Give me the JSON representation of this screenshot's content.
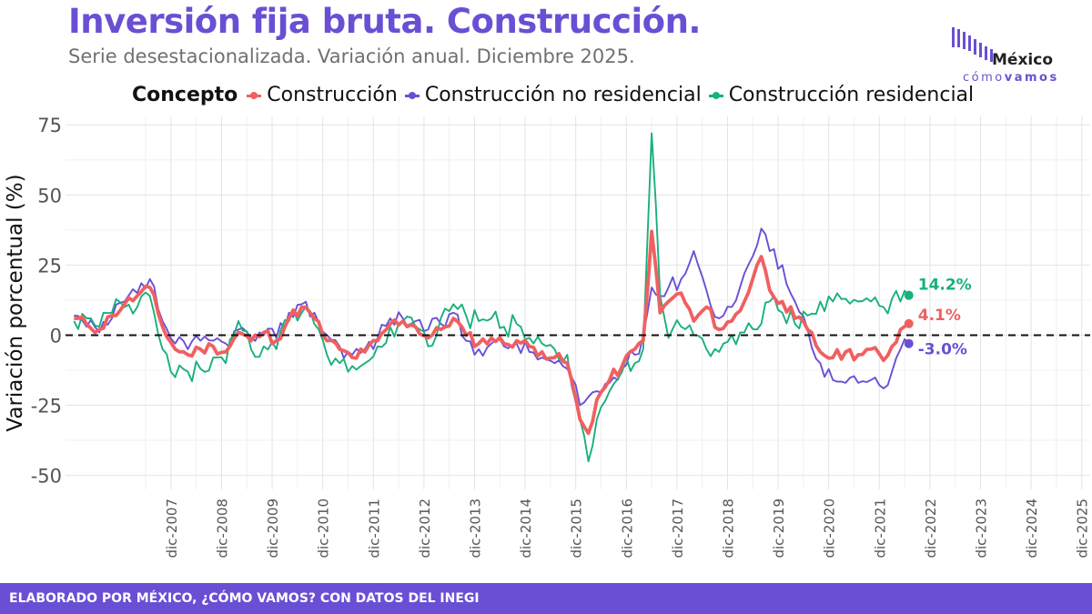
{
  "header": {
    "title": "Inversión fija bruta. Construcción.",
    "subtitle": "Serie desestacionalizada. Variación anual. Diciembre 2025."
  },
  "logo": {
    "name": "México",
    "sub_light": "cómo",
    "sub_bold": "vamos"
  },
  "footer": {
    "text": "ELABORADO POR MÉXICO, ¿CÓMO VAMOS? CON DATOS DEL INEGI"
  },
  "legend": {
    "title": "Concepto"
  },
  "chart_data": {
    "type": "line",
    "title": "Inversión fija bruta. Construcción.",
    "xlabel": "",
    "ylabel": "Variación porcentual (%)",
    "ylim": [
      -55,
      78
    ],
    "yticks": [
      75,
      50,
      25,
      0,
      -25,
      -50
    ],
    "ytick_labels": [
      "75",
      "50",
      "25",
      "0",
      "-25",
      "-50"
    ],
    "x_start": "ene-2006",
    "x_end": "dic-2025",
    "xlim_months": [
      -2,
      241
    ],
    "x_tick_labels": [
      "dic-2007",
      "dic-2008",
      "dic-2009",
      "dic-2010",
      "dic-2011",
      "dic-2012",
      "dic-2013",
      "dic-2014",
      "dic-2015",
      "dic-2016",
      "dic-2017",
      "dic-2018",
      "dic-2019",
      "dic-2020",
      "dic-2021",
      "dic-2022",
      "dic-2023",
      "dic-2024",
      "dic-2025"
    ],
    "x_tick_months": [
      23,
      35,
      47,
      59,
      71,
      83,
      95,
      107,
      119,
      131,
      143,
      155,
      167,
      179,
      191,
      203,
      215,
      227,
      239
    ],
    "zero_line": true,
    "grid": true,
    "series": [
      {
        "name": "Construcción",
        "color": "#f06060",
        "end_label": "4.1%",
        "final_value": 4.1,
        "anchors": [
          [
            0,
            6
          ],
          [
            3,
            4
          ],
          [
            6,
            2
          ],
          [
            9,
            7
          ],
          [
            12,
            11
          ],
          [
            15,
            14
          ],
          [
            18,
            17
          ],
          [
            21,
            3
          ],
          [
            24,
            -5
          ],
          [
            27,
            -7
          ],
          [
            30,
            -5
          ],
          [
            33,
            -4
          ],
          [
            36,
            -6
          ],
          [
            39,
            1
          ],
          [
            42,
            -2
          ],
          [
            45,
            1
          ],
          [
            48,
            -2
          ],
          [
            51,
            6
          ],
          [
            54,
            10
          ],
          [
            57,
            6
          ],
          [
            60,
            -2
          ],
          [
            63,
            -5
          ],
          [
            66,
            -8
          ],
          [
            69,
            -6
          ],
          [
            72,
            -2
          ],
          [
            75,
            4
          ],
          [
            78,
            5
          ],
          [
            81,
            3
          ],
          [
            84,
            -1
          ],
          [
            87,
            2
          ],
          [
            90,
            6
          ],
          [
            93,
            0
          ],
          [
            96,
            -3
          ],
          [
            99,
            -1
          ],
          [
            102,
            -3
          ],
          [
            105,
            -2
          ],
          [
            108,
            -4
          ],
          [
            111,
            -6
          ],
          [
            114,
            -8
          ],
          [
            117,
            -10
          ],
          [
            120,
            -30
          ],
          [
            122,
            -35
          ],
          [
            124,
            -23
          ],
          [
            127,
            -16
          ],
          [
            130,
            -11
          ],
          [
            133,
            -5
          ],
          [
            135,
            -2
          ],
          [
            137,
            37
          ],
          [
            139,
            8
          ],
          [
            141,
            12
          ],
          [
            144,
            15
          ],
          [
            147,
            5
          ],
          [
            150,
            10
          ],
          [
            153,
            2
          ],
          [
            156,
            5
          ],
          [
            159,
            12
          ],
          [
            162,
            25
          ],
          [
            163,
            28
          ],
          [
            165,
            16
          ],
          [
            168,
            12
          ],
          [
            171,
            6
          ],
          [
            174,
            2
          ],
          [
            177,
            -6
          ],
          [
            180,
            -8
          ],
          [
            183,
            -6
          ],
          [
            186,
            -7
          ],
          [
            189,
            -5
          ],
          [
            192,
            -9
          ],
          [
            194,
            -4
          ],
          [
            196,
            2
          ],
          [
            198,
            4.1
          ]
        ]
      },
      {
        "name": "Construcción no residencial",
        "color": "#6a4fd4",
        "end_label": "-3.0%",
        "final_value": -3.0,
        "anchors": [
          [
            0,
            7
          ],
          [
            3,
            3
          ],
          [
            6,
            1
          ],
          [
            9,
            6
          ],
          [
            12,
            12
          ],
          [
            15,
            15
          ],
          [
            18,
            20
          ],
          [
            21,
            5
          ],
          [
            24,
            -3
          ],
          [
            27,
            -5
          ],
          [
            30,
            -2
          ],
          [
            33,
            -2
          ],
          [
            36,
            -3
          ],
          [
            39,
            2
          ],
          [
            42,
            -1
          ],
          [
            45,
            0
          ],
          [
            48,
            -1
          ],
          [
            51,
            8
          ],
          [
            54,
            11
          ],
          [
            57,
            8
          ],
          [
            60,
            0
          ],
          [
            63,
            -4
          ],
          [
            66,
            -7
          ],
          [
            69,
            -5
          ],
          [
            72,
            -1
          ],
          [
            75,
            6
          ],
          [
            78,
            6
          ],
          [
            81,
            5
          ],
          [
            84,
            2
          ],
          [
            87,
            4
          ],
          [
            90,
            8
          ],
          [
            93,
            -2
          ],
          [
            96,
            -5
          ],
          [
            99,
            -3
          ],
          [
            102,
            -4
          ],
          [
            105,
            -3
          ],
          [
            108,
            -6
          ],
          [
            111,
            -8
          ],
          [
            114,
            -10
          ],
          [
            117,
            -12
          ],
          [
            120,
            -25
          ],
          [
            122,
            -22
          ],
          [
            124,
            -20
          ],
          [
            127,
            -17
          ],
          [
            130,
            -12
          ],
          [
            133,
            -7
          ],
          [
            135,
            0
          ],
          [
            137,
            17
          ],
          [
            139,
            14
          ],
          [
            141,
            17
          ],
          [
            144,
            20
          ],
          [
            147,
            30
          ],
          [
            150,
            16
          ],
          [
            153,
            6
          ],
          [
            156,
            10
          ],
          [
            159,
            22
          ],
          [
            162,
            32
          ],
          [
            163,
            38
          ],
          [
            165,
            30
          ],
          [
            168,
            25
          ],
          [
            171,
            12
          ],
          [
            174,
            2
          ],
          [
            177,
            -10
          ],
          [
            180,
            -16
          ],
          [
            183,
            -17
          ],
          [
            186,
            -17
          ],
          [
            189,
            -16
          ],
          [
            192,
            -19
          ],
          [
            194,
            -13
          ],
          [
            196,
            -5
          ],
          [
            198,
            -3.0
          ]
        ]
      },
      {
        "name": "Construcción residencial",
        "color": "#18b07e",
        "end_label": "14.2%",
        "final_value": 14.2,
        "anchors": [
          [
            0,
            5
          ],
          [
            3,
            6
          ],
          [
            6,
            3
          ],
          [
            9,
            8
          ],
          [
            12,
            10
          ],
          [
            15,
            10
          ],
          [
            18,
            14
          ],
          [
            21,
            -5
          ],
          [
            24,
            -15
          ],
          [
            27,
            -13
          ],
          [
            30,
            -12
          ],
          [
            33,
            -8
          ],
          [
            36,
            -10
          ],
          [
            39,
            5
          ],
          [
            42,
            -5
          ],
          [
            45,
            -4
          ],
          [
            48,
            -5
          ],
          [
            51,
            5
          ],
          [
            54,
            8
          ],
          [
            57,
            4
          ],
          [
            60,
            -7
          ],
          [
            63,
            -10
          ],
          [
            66,
            -11
          ],
          [
            69,
            -10
          ],
          [
            72,
            -4
          ],
          [
            75,
            3
          ],
          [
            78,
            5
          ],
          [
            81,
            3
          ],
          [
            84,
            -4
          ],
          [
            87,
            6
          ],
          [
            90,
            11
          ],
          [
            93,
            7
          ],
          [
            96,
            5
          ],
          [
            99,
            6
          ],
          [
            102,
            3
          ],
          [
            105,
            4
          ],
          [
            108,
            -1
          ],
          [
            111,
            -3
          ],
          [
            114,
            -5
          ],
          [
            117,
            -7
          ],
          [
            120,
            -30
          ],
          [
            122,
            -45
          ],
          [
            124,
            -30
          ],
          [
            127,
            -20
          ],
          [
            130,
            -13
          ],
          [
            133,
            -10
          ],
          [
            135,
            -5
          ],
          [
            137,
            72
          ],
          [
            139,
            14
          ],
          [
            141,
            -1
          ],
          [
            144,
            3
          ],
          [
            147,
            0
          ],
          [
            150,
            -5
          ],
          [
            153,
            -6
          ],
          [
            156,
            0
          ],
          [
            159,
            1
          ],
          [
            162,
            2
          ],
          [
            163,
            4
          ],
          [
            165,
            12
          ],
          [
            168,
            8
          ],
          [
            171,
            4
          ],
          [
            174,
            7
          ],
          [
            177,
            12
          ],
          [
            180,
            12
          ],
          [
            183,
            13
          ],
          [
            186,
            12
          ],
          [
            189,
            12
          ],
          [
            192,
            10
          ],
          [
            194,
            13
          ],
          [
            196,
            12
          ],
          [
            198,
            14.2
          ]
        ]
      }
    ]
  }
}
